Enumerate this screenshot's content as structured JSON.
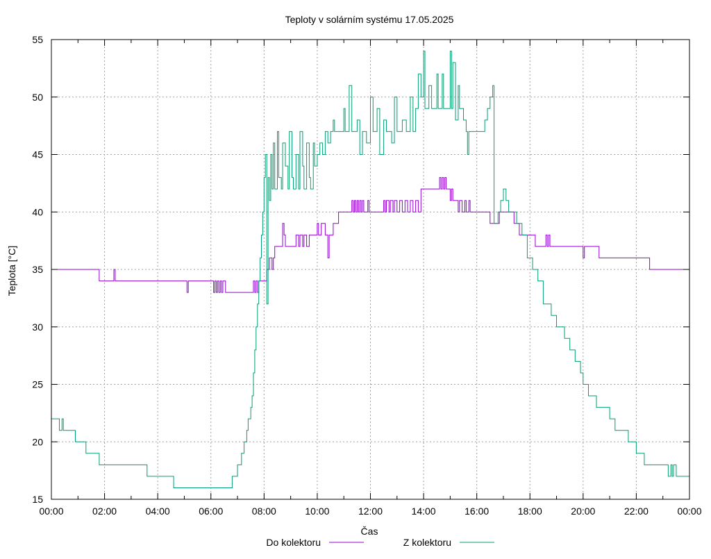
{
  "chart_data": {
    "type": "line",
    "title": "Teploty v solárním systému 17.05.2025",
    "xlabel": "Čas",
    "ylabel": "Teplota [°C]",
    "xlim": [
      0,
      24
    ],
    "ylim": [
      15,
      55
    ],
    "grid": true,
    "legend_placement": "bottom-center",
    "x_tick_labels": [
      "00:00",
      "02:00",
      "04:00",
      "06:00",
      "08:00",
      "10:00",
      "12:00",
      "14:00",
      "16:00",
      "18:00",
      "20:00",
      "22:00",
      "00:00"
    ],
    "y_tick_labels": [
      "15",
      "20",
      "25",
      "30",
      "35",
      "40",
      "45",
      "50",
      "55"
    ],
    "series": [
      {
        "name": "Do kolektoru",
        "color": "#9400d3",
        "points": [
          [
            0,
            35
          ],
          [
            1.8,
            34
          ],
          [
            2.35,
            35
          ],
          [
            2.4,
            34
          ],
          [
            5.1,
            33
          ],
          [
            5.15,
            34
          ],
          [
            6.1,
            33
          ],
          [
            6.15,
            34
          ],
          [
            6.2,
            33
          ],
          [
            6.25,
            34
          ],
          [
            6.3,
            33
          ],
          [
            6.35,
            34
          ],
          [
            6.4,
            33
          ],
          [
            6.45,
            34
          ],
          [
            6.55,
            33
          ],
          [
            7.6,
            34
          ],
          [
            7.65,
            33
          ],
          [
            7.7,
            34
          ],
          [
            7.75,
            33
          ],
          [
            7.8,
            34
          ],
          [
            8.0,
            34
          ],
          [
            8.1,
            35
          ],
          [
            8.2,
            36
          ],
          [
            8.3,
            35
          ],
          [
            8.35,
            36
          ],
          [
            8.4,
            37
          ],
          [
            8.7,
            39
          ],
          [
            8.75,
            38
          ],
          [
            8.8,
            37
          ],
          [
            9.2,
            38
          ],
          [
            9.3,
            37
          ],
          [
            9.35,
            38
          ],
          [
            9.45,
            37
          ],
          [
            9.5,
            38
          ],
          [
            9.6,
            37
          ],
          [
            9.7,
            38
          ],
          [
            10.0,
            39
          ],
          [
            10.05,
            38
          ],
          [
            10.15,
            39
          ],
          [
            10.3,
            38
          ],
          [
            10.4,
            36
          ],
          [
            10.45,
            38
          ],
          [
            10.6,
            39
          ],
          [
            10.8,
            40
          ],
          [
            11.3,
            41
          ],
          [
            11.35,
            40
          ],
          [
            11.4,
            41
          ],
          [
            11.45,
            40
          ],
          [
            11.5,
            41
          ],
          [
            11.55,
            40
          ],
          [
            11.6,
            41
          ],
          [
            11.65,
            40
          ],
          [
            11.7,
            41
          ],
          [
            11.75,
            40
          ],
          [
            11.9,
            41
          ],
          [
            11.95,
            40
          ],
          [
            12.5,
            41
          ],
          [
            12.55,
            40
          ],
          [
            12.6,
            41
          ],
          [
            12.7,
            40
          ],
          [
            12.75,
            41
          ],
          [
            12.85,
            40
          ],
          [
            12.9,
            41
          ],
          [
            13.0,
            40
          ],
          [
            13.1,
            41
          ],
          [
            13.2,
            40
          ],
          [
            13.3,
            41
          ],
          [
            13.4,
            40
          ],
          [
            13.5,
            41
          ],
          [
            13.6,
            40
          ],
          [
            13.7,
            41
          ],
          [
            13.8,
            40
          ],
          [
            13.9,
            42
          ],
          [
            14.6,
            43
          ],
          [
            14.65,
            42
          ],
          [
            14.7,
            43
          ],
          [
            14.75,
            42
          ],
          [
            14.8,
            43
          ],
          [
            14.85,
            42
          ],
          [
            15.0,
            41
          ],
          [
            15.05,
            42
          ],
          [
            15.1,
            41
          ],
          [
            15.3,
            40
          ],
          [
            15.35,
            41
          ],
          [
            15.45,
            40
          ],
          [
            15.55,
            41
          ],
          [
            15.6,
            40
          ],
          [
            15.7,
            41
          ],
          [
            15.75,
            40
          ],
          [
            16.5,
            39
          ],
          [
            16.85,
            40
          ],
          [
            17.4,
            39
          ],
          [
            17.6,
            38
          ],
          [
            18.2,
            37
          ],
          [
            18.6,
            38
          ],
          [
            18.65,
            37
          ],
          [
            18.7,
            38
          ],
          [
            18.75,
            37
          ],
          [
            20.0,
            36
          ],
          [
            20.05,
            37
          ],
          [
            20.6,
            36
          ],
          [
            22.5,
            35
          ],
          [
            24,
            35
          ]
        ]
      },
      {
        "name": "Z kolektoru",
        "color": "#009e73",
        "points": [
          [
            0,
            22
          ],
          [
            0.3,
            21
          ],
          [
            0.4,
            22
          ],
          [
            0.45,
            21
          ],
          [
            0.5,
            21
          ],
          [
            0.9,
            20
          ],
          [
            1.3,
            19
          ],
          [
            1.8,
            18
          ],
          [
            3.6,
            17
          ],
          [
            4.6,
            16
          ],
          [
            6.8,
            17
          ],
          [
            7.0,
            18
          ],
          [
            7.15,
            19
          ],
          [
            7.25,
            20
          ],
          [
            7.35,
            21
          ],
          [
            7.4,
            22
          ],
          [
            7.5,
            23
          ],
          [
            7.55,
            24
          ],
          [
            7.6,
            26
          ],
          [
            7.65,
            28
          ],
          [
            7.7,
            30
          ],
          [
            7.75,
            32
          ],
          [
            7.8,
            34
          ],
          [
            7.85,
            36
          ],
          [
            7.9,
            38
          ],
          [
            7.95,
            40
          ],
          [
            8.0,
            43
          ],
          [
            8.05,
            45
          ],
          [
            8.1,
            32
          ],
          [
            8.15,
            43
          ],
          [
            8.2,
            41
          ],
          [
            8.25,
            45
          ],
          [
            8.3,
            42
          ],
          [
            8.35,
            46
          ],
          [
            8.4,
            42
          ],
          [
            8.5,
            47
          ],
          [
            8.55,
            43
          ],
          [
            8.65,
            42
          ],
          [
            8.7,
            46
          ],
          [
            8.8,
            44
          ],
          [
            8.9,
            42
          ],
          [
            8.95,
            47
          ],
          [
            9.05,
            43
          ],
          [
            9.1,
            42
          ],
          [
            9.2,
            45
          ],
          [
            9.3,
            42
          ],
          [
            9.35,
            47
          ],
          [
            9.45,
            44
          ],
          [
            9.5,
            42
          ],
          [
            9.6,
            46
          ],
          [
            9.7,
            43
          ],
          [
            9.75,
            42
          ],
          [
            9.85,
            46
          ],
          [
            9.9,
            44
          ],
          [
            10.0,
            45
          ],
          [
            10.1,
            46
          ],
          [
            10.2,
            45
          ],
          [
            10.3,
            47
          ],
          [
            10.4,
            46
          ],
          [
            10.5,
            47
          ],
          [
            10.6,
            48
          ],
          [
            10.65,
            47
          ],
          [
            11.0,
            49
          ],
          [
            11.05,
            47
          ],
          [
            11.2,
            51
          ],
          [
            11.3,
            47
          ],
          [
            11.5,
            48
          ],
          [
            11.6,
            45
          ],
          [
            11.7,
            47
          ],
          [
            11.85,
            46
          ],
          [
            12.0,
            50
          ],
          [
            12.1,
            47
          ],
          [
            12.25,
            49
          ],
          [
            12.35,
            45
          ],
          [
            12.5,
            48
          ],
          [
            12.6,
            47
          ],
          [
            12.8,
            46
          ],
          [
            12.9,
            50
          ],
          [
            13.0,
            47
          ],
          [
            13.2,
            48
          ],
          [
            13.35,
            47
          ],
          [
            13.5,
            50
          ],
          [
            13.6,
            47
          ],
          [
            13.7,
            49
          ],
          [
            13.8,
            52
          ],
          [
            13.9,
            50
          ],
          [
            14.0,
            54
          ],
          [
            14.05,
            49
          ],
          [
            14.2,
            51
          ],
          [
            14.3,
            49
          ],
          [
            14.5,
            52
          ],
          [
            14.55,
            49
          ],
          [
            14.7,
            52
          ],
          [
            14.75,
            49
          ],
          [
            15.0,
            54
          ],
          [
            15.05,
            49
          ],
          [
            15.1,
            53
          ],
          [
            15.2,
            48
          ],
          [
            15.3,
            51
          ],
          [
            15.35,
            49
          ],
          [
            15.5,
            48
          ],
          [
            15.6,
            47
          ],
          [
            15.65,
            45
          ],
          [
            15.7,
            47
          ],
          [
            16.0,
            47
          ],
          [
            16.3,
            48
          ],
          [
            16.4,
            49
          ],
          [
            16.5,
            50
          ],
          [
            16.6,
            51
          ],
          [
            16.65,
            39
          ],
          [
            16.8,
            40
          ],
          [
            16.9,
            41
          ],
          [
            17.0,
            42
          ],
          [
            17.1,
            41
          ],
          [
            17.2,
            40
          ],
          [
            17.5,
            39
          ],
          [
            17.7,
            38
          ],
          [
            17.9,
            36
          ],
          [
            18.1,
            35
          ],
          [
            18.3,
            34
          ],
          [
            18.5,
            32
          ],
          [
            18.8,
            31
          ],
          [
            19.0,
            30
          ],
          [
            19.3,
            29
          ],
          [
            19.5,
            28
          ],
          [
            19.7,
            27
          ],
          [
            19.9,
            26
          ],
          [
            20.0,
            25
          ],
          [
            20.2,
            24
          ],
          [
            20.5,
            23
          ],
          [
            21.0,
            22
          ],
          [
            21.2,
            21
          ],
          [
            21.7,
            20
          ],
          [
            22.0,
            19
          ],
          [
            22.3,
            18
          ],
          [
            23.2,
            17
          ],
          [
            23.3,
            18
          ],
          [
            23.35,
            17
          ],
          [
            23.4,
            18
          ],
          [
            23.5,
            17
          ],
          [
            24,
            17
          ]
        ]
      }
    ]
  }
}
